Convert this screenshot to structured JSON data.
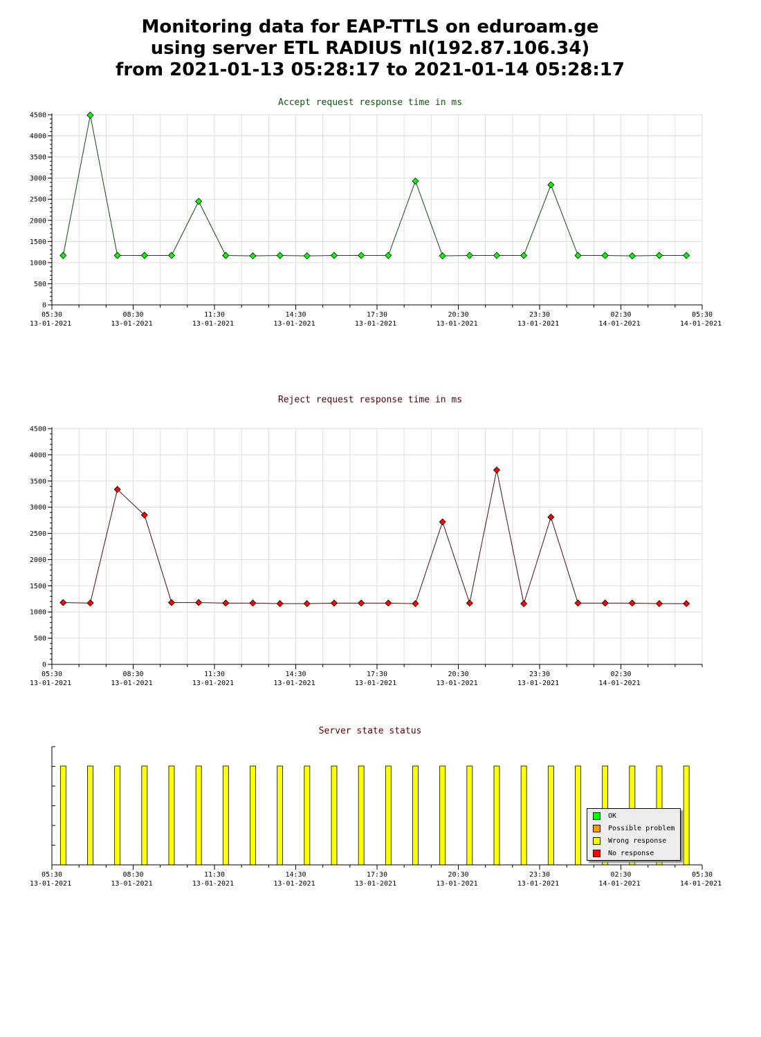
{
  "page": {
    "title_lines": [
      "Monitoring data for EAP-TTLS on eduroam.ge",
      "using server ETL RADIUS nl(192.87.106.34)",
      "from 2021-01-13 05:28:17 to 2021-01-14 05:28:17"
    ]
  },
  "chart_data": [
    {
      "type": "line",
      "title": "Accept request response time in ms",
      "title_color": "#0b5b0b",
      "line_color": "#0b4d0b",
      "marker_color": "#00ff00",
      "ylim": [
        0,
        4500
      ],
      "yticks": [
        0,
        500,
        1000,
        1500,
        2000,
        2500,
        3000,
        3500,
        4000,
        4500
      ],
      "xlim": [
        "2021-01-13 05:30",
        "2021-01-14 05:30"
      ],
      "xticks": [
        {
          "time": "05:30",
          "date": "13-01-2021"
        },
        {
          "time": "08:30",
          "date": "13-01-2021"
        },
        {
          "time": "11:30",
          "date": "13-01-2021"
        },
        {
          "time": "14:30",
          "date": "13-01-2021"
        },
        {
          "time": "17:30",
          "date": "13-01-2021"
        },
        {
          "time": "20:30",
          "date": "13-01-2021"
        },
        {
          "time": "23:30",
          "date": "13-01-2021"
        },
        {
          "time": "02:30",
          "date": "14-01-2021"
        },
        {
          "time": "05:30",
          "date": "14-01-2021"
        }
      ],
      "x": [
        "2021-01-13 05:55",
        "2021-01-13 06:55",
        "2021-01-13 07:55",
        "2021-01-13 08:55",
        "2021-01-13 09:55",
        "2021-01-13 10:55",
        "2021-01-13 11:55",
        "2021-01-13 12:55",
        "2021-01-13 13:55",
        "2021-01-13 14:55",
        "2021-01-13 15:55",
        "2021-01-13 16:55",
        "2021-01-13 17:55",
        "2021-01-13 18:55",
        "2021-01-13 19:55",
        "2021-01-13 20:55",
        "2021-01-13 21:55",
        "2021-01-13 22:55",
        "2021-01-13 23:55",
        "2021-01-14 00:55",
        "2021-01-14 01:55",
        "2021-01-14 02:55",
        "2021-01-14 03:55",
        "2021-01-14 04:55"
      ],
      "values": [
        1170,
        4490,
        1170,
        1170,
        1170,
        2450,
        1170,
        1160,
        1170,
        1160,
        1170,
        1170,
        1170,
        2930,
        1160,
        1170,
        1170,
        1170,
        2840,
        1170,
        1170,
        1160,
        1170,
        1170
      ]
    },
    {
      "type": "line",
      "title": "Reject request response time in ms",
      "title_color": "#5a0000",
      "line_color": "#4d0a0a",
      "marker_color": "#ff0000",
      "ylim": [
        0,
        4500
      ],
      "yticks": [
        0,
        500,
        1000,
        1500,
        2000,
        2500,
        3000,
        3500,
        4000,
        4500
      ],
      "xlim": [
        "2021-01-13 05:30",
        "2021-01-14 05:30"
      ],
      "xticks": [
        {
          "time": "05:30",
          "date": "13-01-2021"
        },
        {
          "time": "08:30",
          "date": "13-01-2021"
        },
        {
          "time": "11:30",
          "date": "13-01-2021"
        },
        {
          "time": "14:30",
          "date": "13-01-2021"
        },
        {
          "time": "17:30",
          "date": "13-01-2021"
        },
        {
          "time": "20:30",
          "date": "13-01-2021"
        },
        {
          "time": "23:30",
          "date": "13-01-2021"
        },
        {
          "time": "02:30",
          "date": "14-01-2021"
        }
      ],
      "x": [
        "2021-01-13 05:55",
        "2021-01-13 06:55",
        "2021-01-13 07:55",
        "2021-01-13 08:55",
        "2021-01-13 09:55",
        "2021-01-13 10:55",
        "2021-01-13 11:55",
        "2021-01-13 12:55",
        "2021-01-13 13:55",
        "2021-01-13 14:55",
        "2021-01-13 15:55",
        "2021-01-13 16:55",
        "2021-01-13 17:55",
        "2021-01-13 18:55",
        "2021-01-13 19:55",
        "2021-01-13 20:55",
        "2021-01-13 21:55",
        "2021-01-13 22:55",
        "2021-01-13 23:55",
        "2021-01-14 00:55",
        "2021-01-14 01:55",
        "2021-01-14 02:55",
        "2021-01-14 03:55",
        "2021-01-14 04:55"
      ],
      "values": [
        1180,
        1170,
        3340,
        2850,
        1180,
        1180,
        1170,
        1170,
        1160,
        1160,
        1170,
        1170,
        1170,
        1160,
        2720,
        1170,
        3710,
        1160,
        2810,
        1170,
        1170,
        1170,
        1160,
        1160
      ]
    },
    {
      "type": "bar",
      "title": "Server state status",
      "title_color": "#5a0000",
      "xlim": [
        "2021-01-13 05:30",
        "2021-01-14 05:30"
      ],
      "xticks": [
        {
          "time": "05:30",
          "date": "13-01-2021"
        },
        {
          "time": "08:30",
          "date": "13-01-2021"
        },
        {
          "time": "11:30",
          "date": "13-01-2021"
        },
        {
          "time": "14:30",
          "date": "13-01-2021"
        },
        {
          "time": "17:30",
          "date": "13-01-2021"
        },
        {
          "time": "20:30",
          "date": "13-01-2021"
        },
        {
          "time": "23:30",
          "date": "13-01-2021"
        },
        {
          "time": "02:30",
          "date": "14-01-2021"
        },
        {
          "time": "05:30",
          "date": "14-01-2021"
        }
      ],
      "x": [
        "2021-01-13 05:55",
        "2021-01-13 06:55",
        "2021-01-13 07:55",
        "2021-01-13 08:55",
        "2021-01-13 09:55",
        "2021-01-13 10:55",
        "2021-01-13 11:55",
        "2021-01-13 12:55",
        "2021-01-13 13:55",
        "2021-01-13 14:55",
        "2021-01-13 15:55",
        "2021-01-13 16:55",
        "2021-01-13 17:55",
        "2021-01-13 18:55",
        "2021-01-13 19:55",
        "2021-01-13 20:55",
        "2021-01-13 21:55",
        "2021-01-13 22:55",
        "2021-01-13 23:55",
        "2021-01-14 00:55",
        "2021-01-14 01:55",
        "2021-01-14 02:55",
        "2021-01-14 03:55",
        "2021-01-14 04:55"
      ],
      "status": [
        "Wrong response",
        "Wrong response",
        "Wrong response",
        "Wrong response",
        "Wrong response",
        "Wrong response",
        "Wrong response",
        "Wrong response",
        "Wrong response",
        "Wrong response",
        "Wrong response",
        "Wrong response",
        "Wrong response",
        "Wrong response",
        "Wrong response",
        "Wrong response",
        "Wrong response",
        "Wrong response",
        "Wrong response",
        "Wrong response",
        "Wrong response",
        "Wrong response",
        "Wrong response",
        "Wrong response"
      ],
      "legend_position": "bottom-right",
      "legend": [
        {
          "label": "OK",
          "color": "#00ff00"
        },
        {
          "label": "Possible problem",
          "color": "#ff9900"
        },
        {
          "label": "Wrong response",
          "color": "#ffff00"
        },
        {
          "label": "No response",
          "color": "#ff0000"
        }
      ]
    }
  ]
}
